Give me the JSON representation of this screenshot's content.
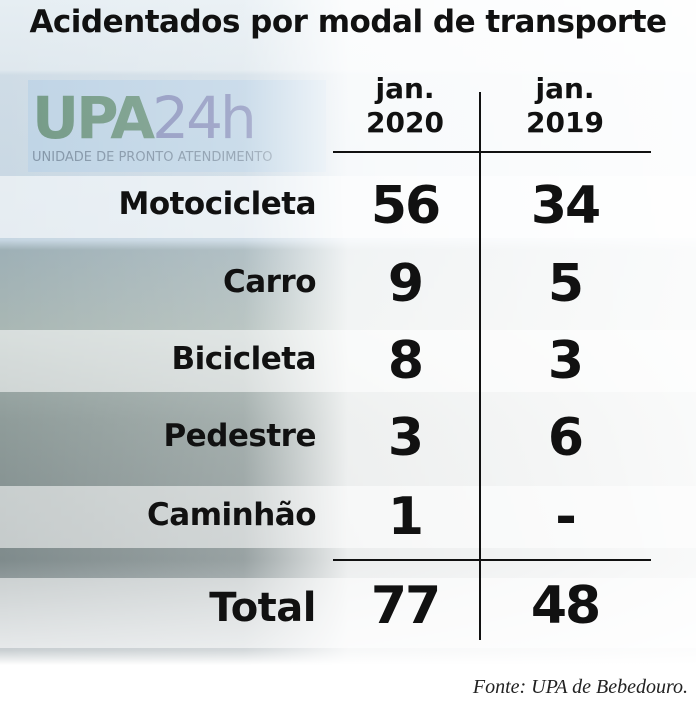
{
  "title": "Acidentados por modal de transporte",
  "logo": {
    "text": "UPA24h",
    "subtitle": "UNIDADE DE PRONTO ATENDIMENTO"
  },
  "chart_data": {
    "type": "table",
    "title": "Acidentados por modal de transporte",
    "columns": [
      {
        "line1": "jan.",
        "line2": "2020"
      },
      {
        "line1": "jan.",
        "line2": "2019"
      }
    ],
    "rows": [
      {
        "label": "Motocicleta",
        "values": [
          "56",
          "34"
        ]
      },
      {
        "label": "Carro",
        "values": [
          "9",
          "5"
        ]
      },
      {
        "label": "Bicicleta",
        "values": [
          "8",
          "3"
        ]
      },
      {
        "label": "Pedestre",
        "values": [
          "3",
          "6"
        ]
      },
      {
        "label": "Caminhão",
        "values": [
          "1",
          "-"
        ]
      }
    ],
    "total": {
      "label": "Total",
      "values": [
        "77",
        "48"
      ]
    }
  },
  "source": "Fonte: UPA de Bebedouro."
}
